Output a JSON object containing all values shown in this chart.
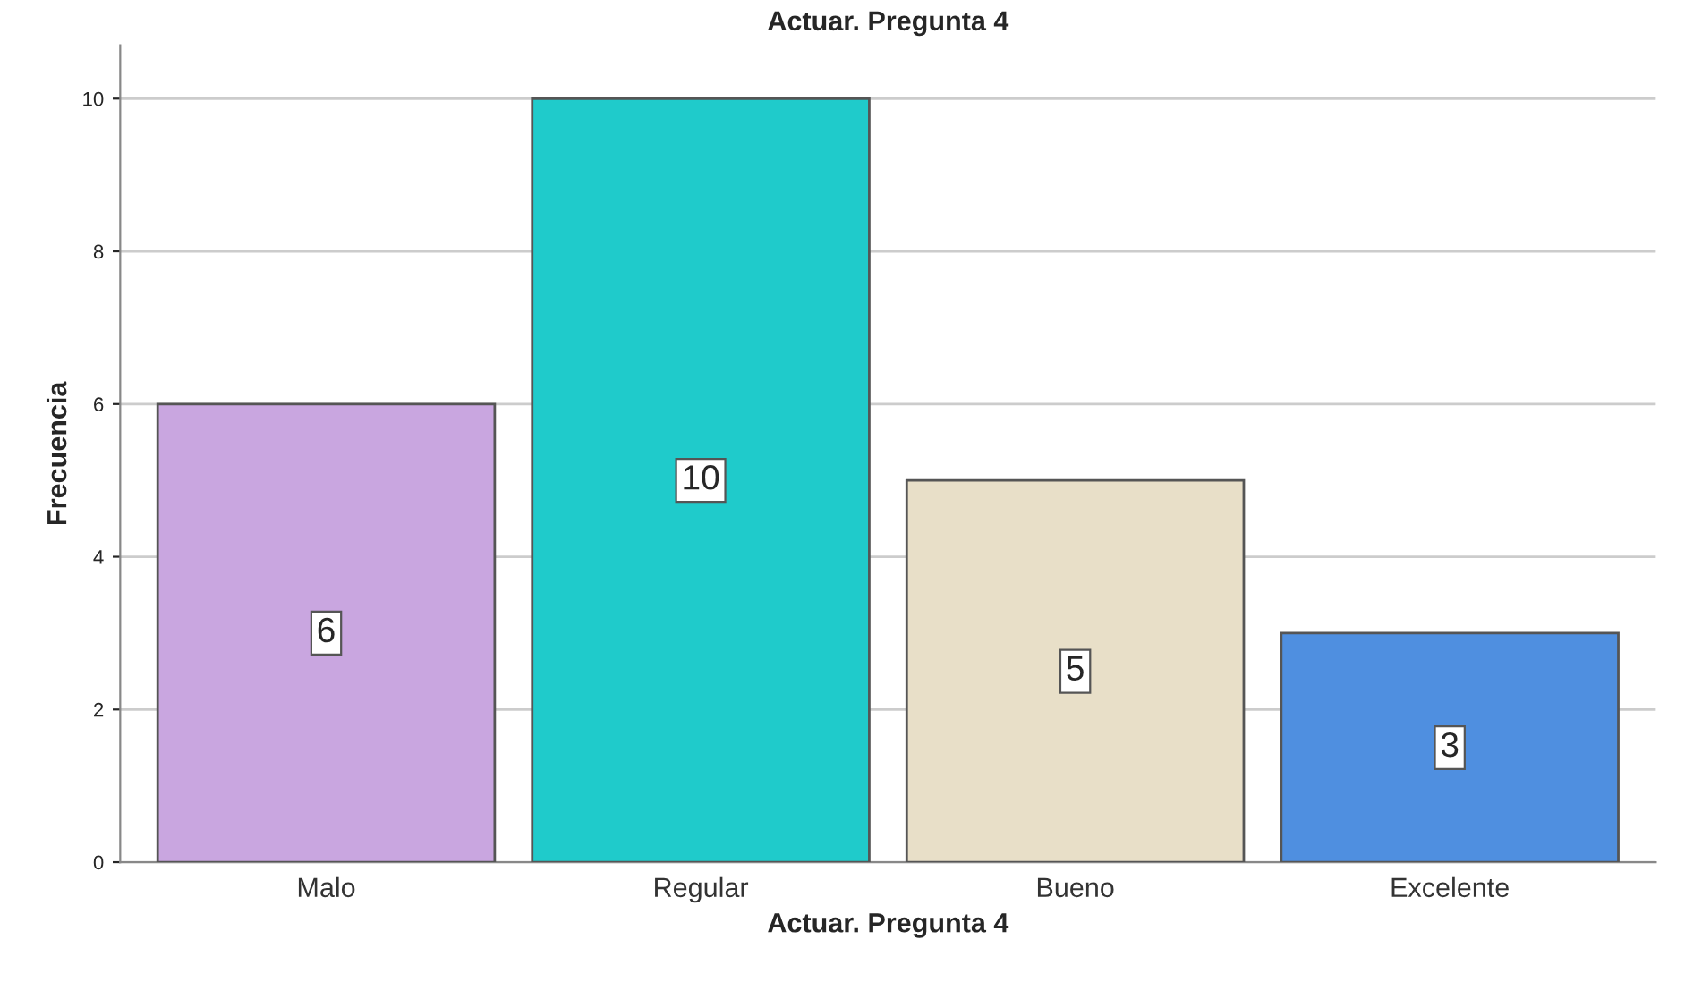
{
  "chart_data": {
    "type": "bar",
    "title": "Actuar. Pregunta 4",
    "xlabel": "Actuar. Pregunta 4",
    "ylabel": "Frecuencia",
    "categories": [
      "Malo",
      "Regular",
      "Bueno",
      "Excelente"
    ],
    "values": [
      6,
      10,
      5,
      3
    ],
    "colors": [
      "#c9a6e0",
      "#1fcbcb",
      "#e8dfc8",
      "#4f8fe0"
    ],
    "ylim": [
      0,
      10.7
    ],
    "yticks": [
      0,
      2,
      4,
      6,
      8,
      10
    ],
    "grid": "y",
    "data_labels": true
  }
}
